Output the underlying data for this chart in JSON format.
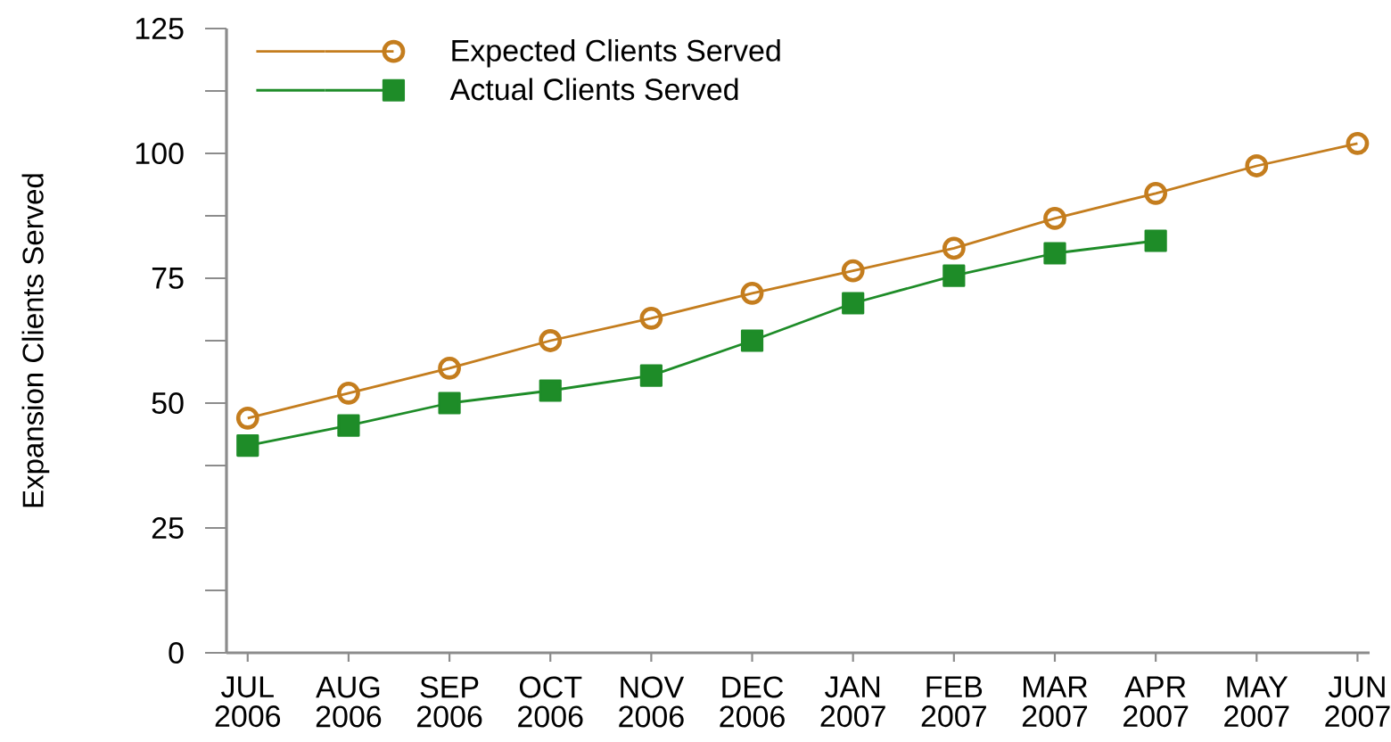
{
  "chart_data": {
    "type": "line",
    "ylabel": "Expansion Clients Served",
    "categories": [
      "JUL 2006",
      "AUG 2006",
      "SEP 2006",
      "OCT 2006",
      "NOV 2006",
      "DEC 2006",
      "JAN 2007",
      "FEB 2007",
      "MAR 2007",
      "APR 2007",
      "MAY 2007",
      "JUN 2007"
    ],
    "series": [
      {
        "name": "Expected Clients Served",
        "color": "#c47d1e",
        "marker": "circle",
        "values": [
          47,
          52,
          57,
          62.5,
          67,
          72,
          76.5,
          81,
          87,
          92,
          97.5,
          102
        ]
      },
      {
        "name": "Actual Clients Served",
        "color": "#1e8c28",
        "marker": "square",
        "values": [
          41.5,
          45.5,
          50,
          52.5,
          55.5,
          62.5,
          70,
          75.5,
          80,
          82.5,
          null,
          null
        ]
      }
    ],
    "ylim": [
      0,
      125
    ],
    "yticks": [
      0,
      {
        "value": 12.5,
        "label": null
      },
      25,
      {
        "value": 37.5,
        "label": null
      },
      50,
      {
        "value": 62.5,
        "label": null
      },
      75,
      {
        "value": 87.5,
        "label": null
      },
      100,
      {
        "value": 112.5,
        "label": null
      },
      125
    ],
    "legend": "top left"
  }
}
